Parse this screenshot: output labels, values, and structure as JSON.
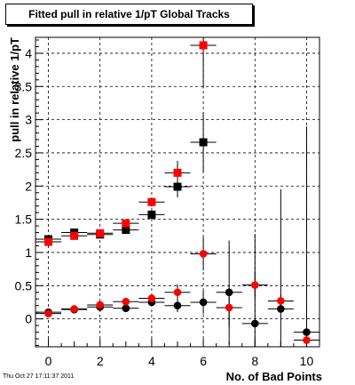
{
  "chart_data": {
    "type": "scatter",
    "title": "Fitted pull in relative 1/pT  Global Tracks",
    "xlabel": "No. of Bad Points",
    "ylabel": "pull in relative 1/pT",
    "xlim": [
      -0.5,
      10.5
    ],
    "ylim": [
      -0.42,
      4.24
    ],
    "grid": true,
    "x_ticks": [
      0,
      2,
      4,
      6,
      8,
      10
    ],
    "y_ticks": [
      0,
      0.5,
      1,
      1.5,
      2,
      2.5,
      3,
      3.5,
      4
    ],
    "series": [
      {
        "marker": "square",
        "color": "#000000",
        "x": [
          0,
          1,
          2,
          3,
          4,
          5,
          6
        ],
        "y": [
          1.2,
          1.3,
          1.27,
          1.34,
          1.57,
          1.99,
          2.66
        ],
        "err": [
          0.04,
          0.04,
          0.04,
          0.05,
          0.07,
          0.16,
          0.45
        ]
      },
      {
        "marker": "square",
        "color": "#ff0000",
        "x": [
          0,
          1,
          2,
          3,
          4,
          5,
          6
        ],
        "y": [
          1.16,
          1.25,
          1.29,
          1.44,
          1.76,
          2.2,
          4.12
        ],
        "err": [
          0.04,
          0.04,
          0.04,
          0.05,
          0.07,
          0.18,
          0.65
        ]
      },
      {
        "marker": "circle",
        "color": "#000000",
        "x": [
          0,
          1,
          2,
          3,
          4,
          5,
          6,
          7,
          8,
          9,
          10
        ],
        "y": [
          0.1,
          0.14,
          0.18,
          0.16,
          0.25,
          0.2,
          0.25,
          0.4,
          -0.07,
          0.15,
          -0.2
        ],
        "err": [
          0.02,
          0.02,
          0.03,
          0.04,
          0.06,
          0.1,
          0.18,
          0.78,
          1.35,
          1.8,
          3.1
        ]
      },
      {
        "marker": "circle",
        "color": "#ff0000",
        "x": [
          0,
          1,
          2,
          3,
          4,
          5,
          6,
          7,
          8,
          9,
          10
        ],
        "y": [
          0.08,
          0.15,
          0.21,
          0.26,
          0.31,
          0.4,
          0.98,
          0.17,
          0.51,
          0.27,
          -0.32
        ],
        "err": [
          0.02,
          0.02,
          0.03,
          0.04,
          0.06,
          0.12,
          0.25,
          0.3,
          0.2,
          0.1,
          0.05
        ]
      }
    ]
  },
  "footer": {
    "timestamp": "Thu Oct 27 17:11:37 2011"
  }
}
